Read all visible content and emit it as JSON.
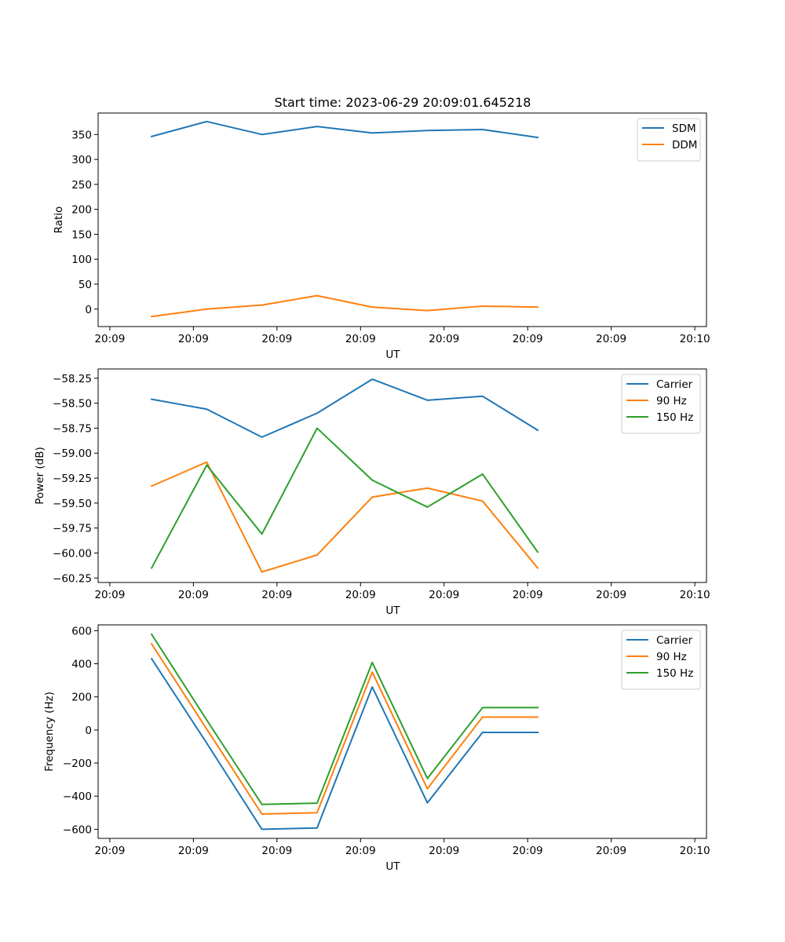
{
  "figure": {
    "title": "Start time: 2023-06-29 20:09:01.645218"
  },
  "chart_data": [
    {
      "type": "line",
      "title": "Start time: 2023-06-29 20:09:01.645218",
      "xlabel": "UT",
      "ylabel": "Ratio",
      "x_tick_labels": [
        "20:09",
        "20:09",
        "20:09",
        "20:09",
        "20:09",
        "20:09",
        "20:09",
        "20:10"
      ],
      "y_ticks": [
        0,
        50,
        100,
        150,
        200,
        250,
        300,
        350
      ],
      "ylim": [
        -35,
        393
      ],
      "x_ticks": [
        -0.5,
        0.5,
        1.5,
        2.5,
        3.5,
        4.5,
        5.5,
        6.5
      ],
      "xlim": [
        -0.64,
        6.64
      ],
      "x": [
        0,
        0.66,
        1.32,
        1.98,
        2.64,
        3.3,
        3.96,
        4.62
      ],
      "legend": "upper right",
      "series": [
        {
          "name": "SDM",
          "color": "#1f77b4",
          "values": [
            346,
            376,
            350,
            366,
            353,
            358,
            360,
            344
          ]
        },
        {
          "name": "DDM",
          "color": "#ff7f0e",
          "values": [
            -15,
            0,
            8,
            27,
            4,
            -3,
            6,
            4
          ]
        }
      ]
    },
    {
      "type": "line",
      "xlabel": "UT",
      "ylabel": "Power (dB)",
      "x_tick_labels": [
        "20:09",
        "20:09",
        "20:09",
        "20:09",
        "20:09",
        "20:09",
        "20:09",
        "20:10"
      ],
      "y_ticks": [
        -60.25,
        -60.0,
        -59.75,
        -59.5,
        -59.25,
        -59.0,
        -58.75,
        -58.5,
        -58.25
      ],
      "y_tick_labels": [
        "−60.25",
        "−60.00",
        "−59.75",
        "−59.50",
        "−59.25",
        "−59.00",
        "−58.75",
        "−58.50",
        "−58.25"
      ],
      "ylim": [
        -60.295,
        -58.157
      ],
      "x_ticks": [
        -0.5,
        0.5,
        1.5,
        2.5,
        3.5,
        4.5,
        5.5,
        6.5
      ],
      "xlim": [
        -0.64,
        6.64
      ],
      "x": [
        0,
        0.66,
        1.32,
        1.98,
        2.64,
        3.3,
        3.96,
        4.62
      ],
      "legend": "upper right",
      "series": [
        {
          "name": "Carrier",
          "color": "#1f77b4",
          "values": [
            -58.46,
            -58.56,
            -58.84,
            -58.6,
            -58.26,
            -58.47,
            -58.43,
            -58.77
          ]
        },
        {
          "name": "90 Hz",
          "color": "#ff7f0e",
          "values": [
            -59.33,
            -59.09,
            -60.19,
            -60.02,
            -59.44,
            -59.35,
            -59.48,
            -60.15
          ]
        },
        {
          "name": "150 Hz",
          "color": "#2ca02c",
          "values": [
            -60.15,
            -59.12,
            -59.81,
            -58.75,
            -59.27,
            -59.54,
            -59.21,
            -59.99
          ]
        }
      ]
    },
    {
      "type": "line",
      "xlabel": "UT",
      "ylabel": "Frequency (Hz)",
      "x_tick_labels": [
        "20:09",
        "20:09",
        "20:09",
        "20:09",
        "20:09",
        "20:09",
        "20:09",
        "20:10"
      ],
      "y_ticks": [
        -600,
        -400,
        -200,
        0,
        200,
        400,
        600
      ],
      "y_tick_labels": [
        "−600",
        "−400",
        "−200",
        "0",
        "200",
        "400",
        "600"
      ],
      "ylim": [
        -655,
        635
      ],
      "x_ticks": [
        -0.5,
        0.5,
        1.5,
        2.5,
        3.5,
        4.5,
        5.5,
        6.5
      ],
      "xlim": [
        -0.64,
        6.64
      ],
      "x": [
        0,
        0.66,
        1.32,
        1.98,
        2.64,
        3.3,
        3.96,
        4.62
      ],
      "legend": "upper right",
      "series": [
        {
          "name": "Carrier",
          "color": "#1f77b4",
          "values": [
            430,
            -80,
            -600,
            -592,
            260,
            -440,
            -15,
            -15
          ]
        },
        {
          "name": "90 Hz",
          "color": "#ff7f0e",
          "values": [
            520,
            5,
            -508,
            -500,
            350,
            -355,
            78,
            78
          ]
        },
        {
          "name": "150 Hz",
          "color": "#2ca02c",
          "values": [
            578,
            60,
            -450,
            -442,
            408,
            -293,
            135,
            135
          ]
        }
      ]
    }
  ]
}
